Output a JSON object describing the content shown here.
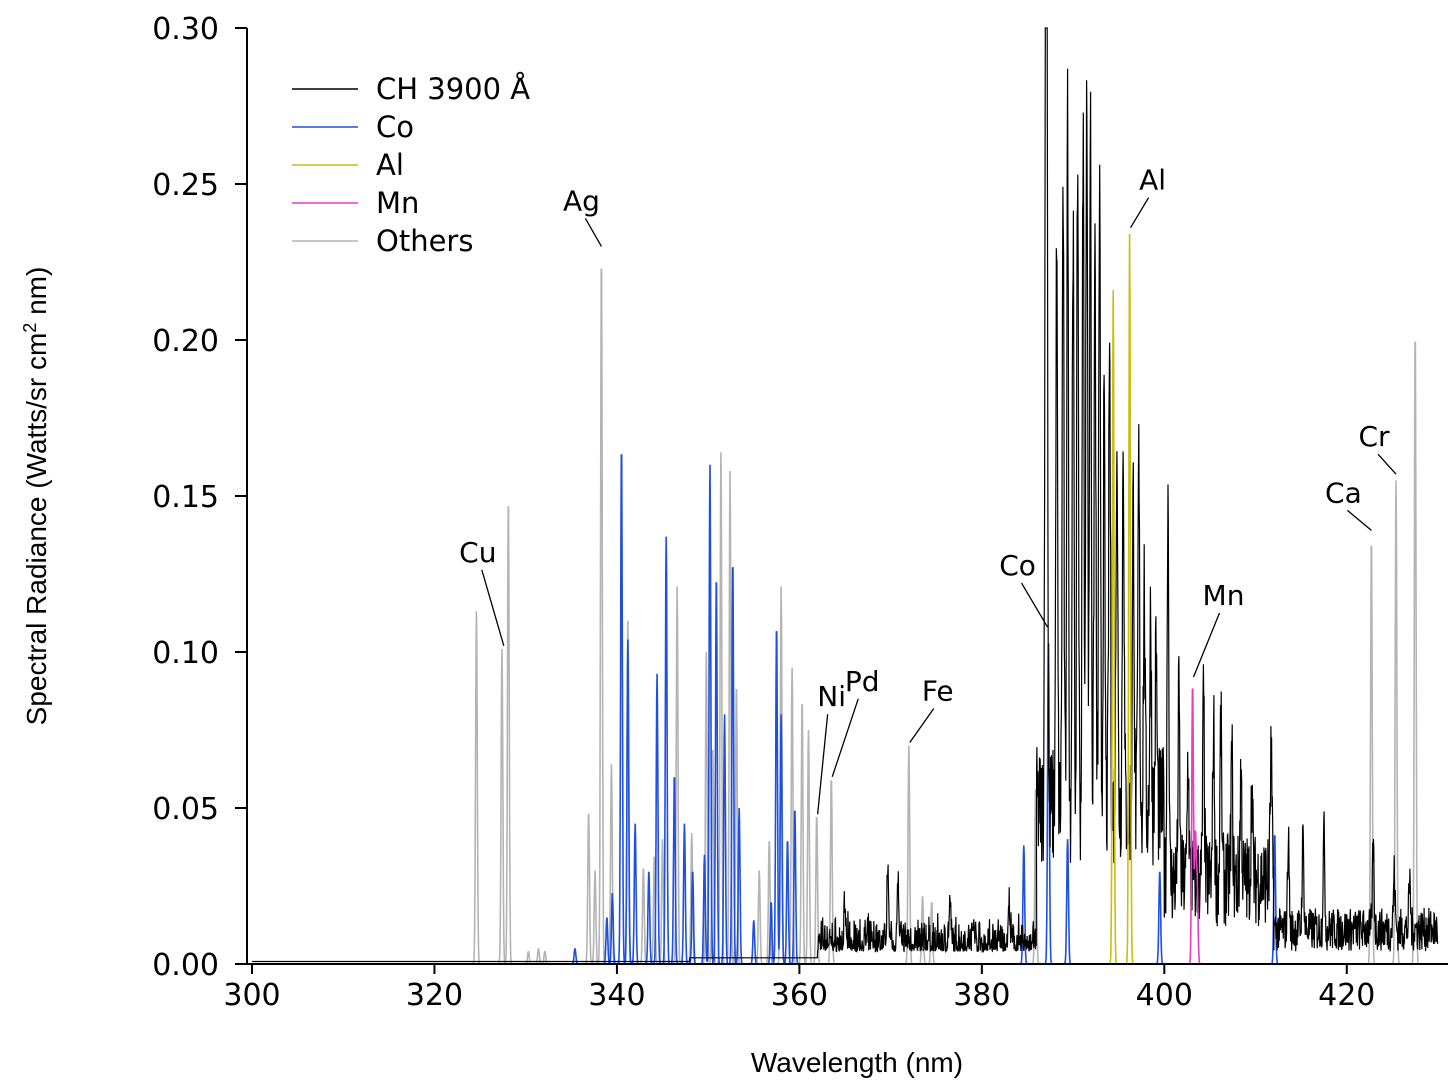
{
  "chart_data": {
    "type": "line",
    "title": "",
    "xlabel": "Wavelength (nm)",
    "ylabel_main": "Spectral Radiance (Watts/sr cm",
    "ylabel_sup": "2",
    "ylabel_tail": " nm)",
    "xlim": [
      300,
      430
    ],
    "ylim": [
      0,
      0.3
    ],
    "xticks": [
      {
        "value": 300,
        "label": "300"
      },
      {
        "value": 320,
        "label": "320"
      },
      {
        "value": 340,
        "label": "340"
      },
      {
        "value": 360,
        "label": "360"
      },
      {
        "value": 380,
        "label": "380"
      },
      {
        "value": 400,
        "label": "400"
      },
      {
        "value": 420,
        "label": "420"
      }
    ],
    "yticks": [
      {
        "value": 0.0,
        "label": "0.00"
      },
      {
        "value": 0.05,
        "label": "0.05"
      },
      {
        "value": 0.1,
        "label": "0.10"
      },
      {
        "value": 0.15,
        "label": "0.15"
      },
      {
        "value": 0.2,
        "label": "0.20"
      },
      {
        "value": 0.25,
        "label": "0.25"
      },
      {
        "value": 0.3,
        "label": "0.30"
      }
    ],
    "grid": false,
    "legend_position": "top-left",
    "series": [
      {
        "name": "Others",
        "color": "#b4b4b4",
        "peaks": [
          [
            324.6,
            0.113
          ],
          [
            327.4,
            0.101
          ],
          [
            328.1,
            0.15
          ],
          [
            330.3,
            0.004
          ],
          [
            331.4,
            0.005
          ],
          [
            332.1,
            0.004
          ],
          [
            336.9,
            0.049
          ],
          [
            337.6,
            0.03
          ],
          [
            338.3,
            0.228
          ],
          [
            339.4,
            0.064
          ],
          [
            341.2,
            0.11
          ],
          [
            342.9,
            0.031
          ],
          [
            344.1,
            0.035
          ],
          [
            345.0,
            0.04
          ],
          [
            346.6,
            0.121
          ],
          [
            348.2,
            0.042
          ],
          [
            349.8,
            0.1
          ],
          [
            350.5,
            0.07
          ],
          [
            351.4,
            0.164
          ],
          [
            352.4,
            0.158
          ],
          [
            353.1,
            0.09
          ],
          [
            355.6,
            0.03
          ],
          [
            356.7,
            0.04
          ],
          [
            358.0,
            0.121
          ],
          [
            359.2,
            0.095
          ],
          [
            360.3,
            0.085
          ],
          [
            361.0,
            0.075
          ],
          [
            361.9,
            0.048
          ],
          [
            363.5,
            0.06
          ],
          [
            372.0,
            0.07
          ],
          [
            373.5,
            0.022
          ],
          [
            374.5,
            0.02
          ],
          [
            385.9,
            0.057
          ],
          [
            422.7,
            0.137
          ],
          [
            425.4,
            0.155
          ],
          [
            427.5,
            0.204
          ]
        ]
      },
      {
        "name": "Co",
        "color": "#1f4fe0",
        "peaks": [
          [
            335.4,
            0.005
          ],
          [
            338.9,
            0.015
          ],
          [
            339.5,
            0.023
          ],
          [
            340.5,
            0.167
          ],
          [
            341.2,
            0.104
          ],
          [
            342.0,
            0.045
          ],
          [
            343.5,
            0.03
          ],
          [
            344.4,
            0.093
          ],
          [
            345.4,
            0.137
          ],
          [
            346.3,
            0.061
          ],
          [
            347.4,
            0.045
          ],
          [
            348.3,
            0.03
          ],
          [
            349.6,
            0.035
          ],
          [
            350.2,
            0.16
          ],
          [
            350.9,
            0.125
          ],
          [
            351.8,
            0.08
          ],
          [
            352.7,
            0.13
          ],
          [
            353.4,
            0.05
          ],
          [
            355.0,
            0.014
          ],
          [
            356.9,
            0.02
          ],
          [
            357.5,
            0.109
          ],
          [
            358.0,
            0.08
          ],
          [
            358.7,
            0.04
          ],
          [
            359.5,
            0.05
          ],
          [
            384.6,
            0.038
          ],
          [
            387.3,
            0.105
          ],
          [
            389.4,
            0.04
          ],
          [
            399.5,
            0.03
          ],
          [
            412.1,
            0.042
          ]
        ]
      },
      {
        "name": "Al",
        "color": "#c8be14",
        "peaks": [
          [
            394.4,
            0.216
          ],
          [
            396.2,
            0.234
          ]
        ]
      },
      {
        "name": "Mn",
        "color": "#e43ec8",
        "peaks": [
          [
            403.1,
            0.09
          ],
          [
            403.4,
            0.04
          ],
          [
            403.6,
            0.025
          ]
        ]
      },
      {
        "name": "CH 3900 Å",
        "color": "#000000",
        "peaks": [
          [
            387.1,
            0.3
          ],
          [
            387.0,
            0.237
          ],
          [
            388.2,
            0.18
          ],
          [
            388.9,
            0.2
          ],
          [
            389.4,
            0.22
          ],
          [
            390.0,
            0.19
          ],
          [
            390.5,
            0.21
          ],
          [
            391.1,
            0.218
          ],
          [
            391.5,
            0.246
          ],
          [
            391.9,
            0.223
          ],
          [
            392.4,
            0.182
          ],
          [
            392.9,
            0.2
          ],
          [
            393.4,
            0.125
          ],
          [
            394.0,
            0.15
          ],
          [
            394.8,
            0.125
          ],
          [
            395.5,
            0.12
          ],
          [
            396.6,
            0.1
          ],
          [
            397.2,
            0.11
          ],
          [
            397.8,
            0.07
          ],
          [
            398.5,
            0.06
          ],
          [
            399.1,
            0.05
          ],
          [
            400.4,
            0.126
          ],
          [
            401.6,
            0.06
          ],
          [
            402.6,
            0.04
          ],
          [
            404.3,
            0.058
          ],
          [
            405.4,
            0.05
          ],
          [
            406.2,
            0.05
          ],
          [
            407.4,
            0.04
          ],
          [
            408.4,
            0.035
          ],
          [
            409.6,
            0.03
          ],
          [
            411.7,
            0.04
          ],
          [
            413.6,
            0.03
          ],
          [
            415.2,
            0.03
          ],
          [
            417.5,
            0.032
          ],
          [
            422.9,
            0.027
          ],
          [
            425.2,
            0.018
          ],
          [
            426.9,
            0.015
          ],
          [
            365.0,
            0.01
          ],
          [
            369.7,
            0.025
          ],
          [
            370.8,
            0.02
          ],
          [
            376.5,
            0.012
          ],
          [
            379.1,
            0.008
          ],
          [
            383.0,
            0.012
          ]
        ]
      }
    ],
    "annotations": [
      {
        "text": "Cu",
        "x": 327.6,
        "y": 0.102
      },
      {
        "text": "Ag",
        "x": 338.3,
        "y": 0.23
      },
      {
        "text": "Ni",
        "x": 362.0,
        "y": 0.048
      },
      {
        "text": "Pd",
        "x": 363.6,
        "y": 0.06
      },
      {
        "text": "Fe",
        "x": 372.1,
        "y": 0.071
      },
      {
        "text": "Co",
        "x": 387.2,
        "y": 0.108
      },
      {
        "text": "Al",
        "x": 396.3,
        "y": 0.236
      },
      {
        "text": "Mn",
        "x": 403.2,
        "y": 0.092
      },
      {
        "text": "Ca",
        "x": 422.7,
        "y": 0.139
      },
      {
        "text": "Cr",
        "x": 425.4,
        "y": 0.157
      }
    ]
  }
}
